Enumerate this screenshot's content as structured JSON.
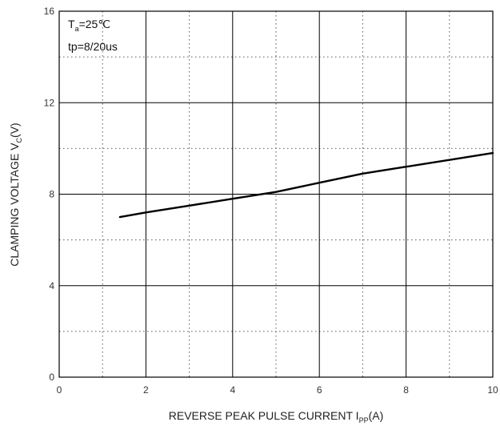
{
  "chart_data": {
    "type": "line",
    "title": "",
    "xlabel": {
      "main": "REVERSE PEAK PULSE CURRENT  I",
      "sub": "PP",
      "suffix": "(A)"
    },
    "ylabel": {
      "main": "CLAMPING VOLTAGE  V",
      "sub": "C",
      "suffix": "(V)"
    },
    "xlim": [
      0,
      10
    ],
    "ylim": [
      0,
      16
    ],
    "x_major_ticks": [
      0,
      2,
      4,
      6,
      8,
      10
    ],
    "x_tick_labels": [
      "0",
      "2",
      "4",
      "6",
      "8",
      "10"
    ],
    "x_minor_ticks": [
      1,
      3,
      5,
      7,
      9
    ],
    "y_major_ticks": [
      0,
      4,
      8,
      12,
      16
    ],
    "y_tick_labels": [
      "0",
      "4",
      "8",
      "12",
      "16"
    ],
    "y_minor_ticks": [
      2,
      6,
      10,
      14
    ],
    "grid": true,
    "annotations": {
      "temp": {
        "main": "T",
        "sub": "a",
        "suffix": "=25℃"
      },
      "pulse": "tp=8/20us"
    },
    "series": [
      {
        "x": [
          1.4,
          2,
          3,
          4,
          5,
          6,
          7,
          8,
          9,
          10
        ],
        "y": [
          7.0,
          7.2,
          7.5,
          7.8,
          8.1,
          8.5,
          8.9,
          9.2,
          9.5,
          9.8
        ]
      }
    ],
    "colors": {
      "line": "#000000",
      "grid_major": "#000000",
      "grid_minor": "#555555",
      "frame": "#000000"
    }
  }
}
